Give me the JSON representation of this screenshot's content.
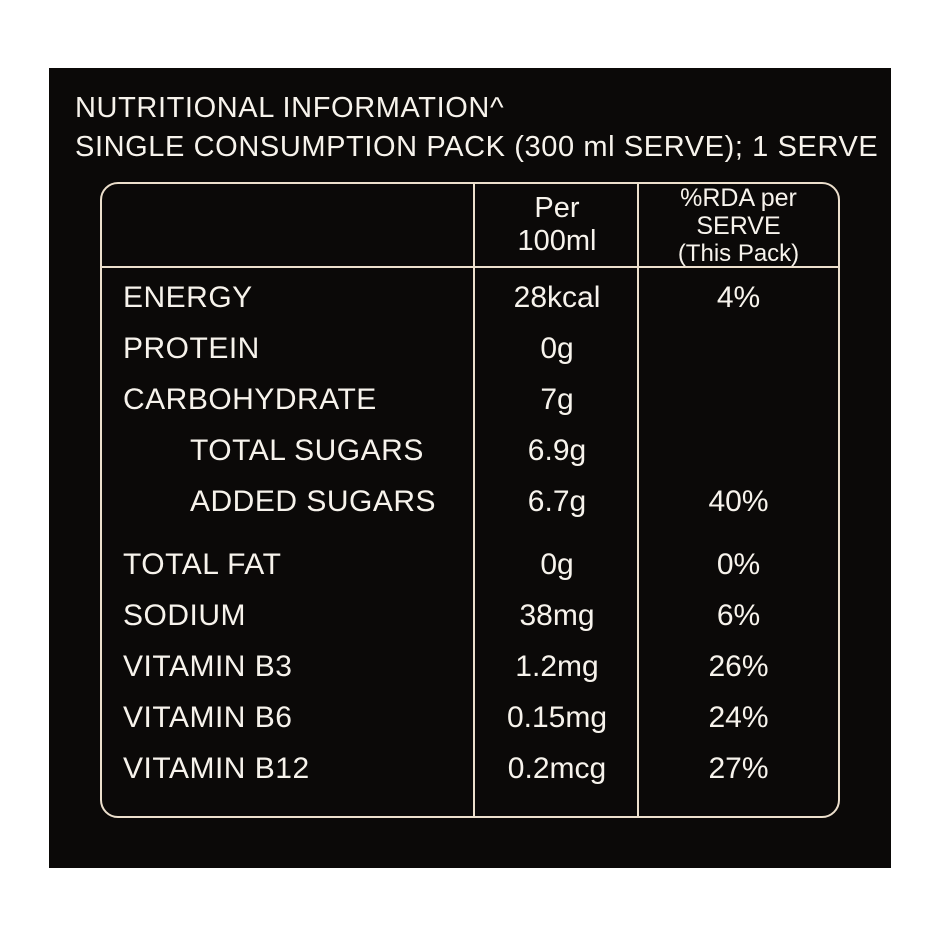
{
  "colors": {
    "page_background": "#ffffff",
    "panel_background": "#0b0908",
    "table_border": "#ecdfcc",
    "text": "#f7f3ec"
  },
  "header": {
    "line1": "NUTRITIONAL INFORMATION^",
    "line2": "SINGLE CONSUMPTION PACK (300 ml SERVE); 1 SERVE"
  },
  "table": {
    "columns": {
      "per_100ml_line1": "Per",
      "per_100ml_line2": "100ml",
      "rda_line1": "%RDA per SERVE",
      "rda_line2": "(This Pack)"
    },
    "rows": [
      {
        "label": "ENERGY",
        "per_100ml": "28kcal",
        "rda": "4%"
      },
      {
        "label": "PROTEIN",
        "per_100ml": "0g",
        "rda": ""
      },
      {
        "label": "CARBOHYDRATE",
        "per_100ml": "7g",
        "rda": ""
      },
      {
        "label": "TOTAL SUGARS",
        "per_100ml": "6.9g",
        "rda": ""
      },
      {
        "label": "ADDED SUGARS",
        "per_100ml": "6.7g",
        "rda": "40%"
      },
      {
        "label": "TOTAL FAT",
        "per_100ml": "0g",
        "rda": "0%"
      },
      {
        "label": "SODIUM",
        "per_100ml": "38mg",
        "rda": "6%"
      },
      {
        "label": "VITAMIN B3",
        "per_100ml": "1.2mg",
        "rda": "26%"
      },
      {
        "label": "VITAMIN B6",
        "per_100ml": "0.15mg",
        "rda": "24%"
      },
      {
        "label": "VITAMIN B12",
        "per_100ml": "0.2mcg",
        "rda": "27%"
      }
    ]
  }
}
